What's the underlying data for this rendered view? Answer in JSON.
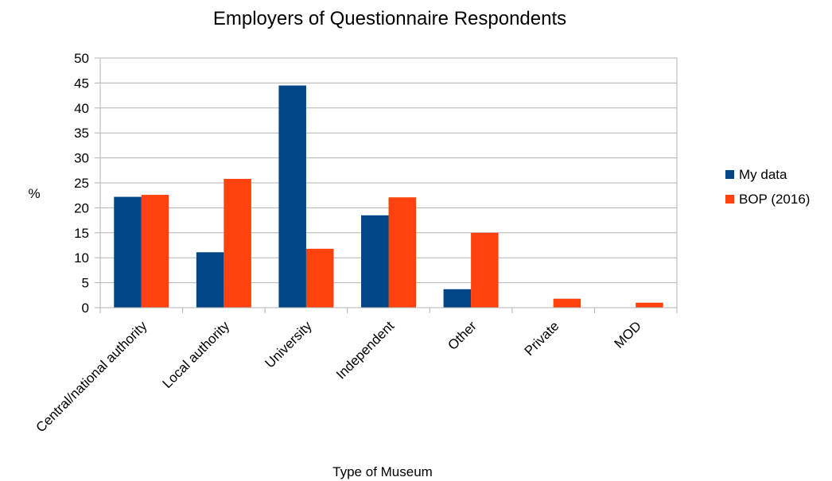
{
  "chart_data": {
    "type": "bar",
    "title": "Employers of Questionnaire Respondents",
    "xlabel": "Type of Museum",
    "ylabel": "%",
    "ylim": [
      0,
      50
    ],
    "ytick_step": 5,
    "grid": true,
    "legend_position": "right",
    "categories": [
      "Central/national authority",
      "Local authority",
      "University",
      "Independent",
      "Other",
      "Private",
      "MOD"
    ],
    "series": [
      {
        "name": "My data",
        "color": "#004586",
        "values": [
          22.2,
          11.1,
          44.5,
          18.5,
          3.7,
          0,
          0
        ]
      },
      {
        "name": "BOP (2016)",
        "color": "#FF420E",
        "values": [
          22.6,
          25.8,
          11.8,
          22.1,
          15.0,
          1.8,
          1.0
        ]
      }
    ]
  }
}
